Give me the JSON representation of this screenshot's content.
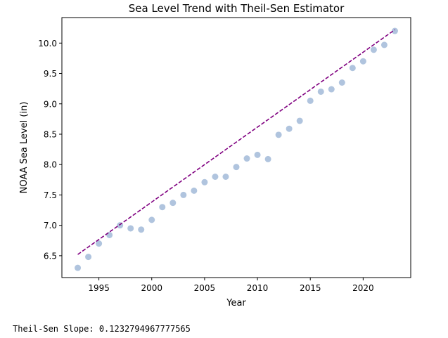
{
  "chart_data": {
    "type": "scatter",
    "title": "Sea Level Trend with Theil-Sen Estimator",
    "xlabel": "Year",
    "ylabel": "NOAA Sea Level (in)",
    "xlim": [
      1991.5,
      2024.5
    ],
    "ylim": [
      6.14,
      10.42
    ],
    "xticks": [
      1995,
      2000,
      2005,
      2010,
      2015,
      2020
    ],
    "yticks": [
      6.5,
      7.0,
      7.5,
      8.0,
      8.5,
      9.0,
      9.5,
      10.0
    ],
    "ytick_labels": [
      "6.5",
      "7.0",
      "7.5",
      "8.0",
      "8.5",
      "9.0",
      "9.5",
      "10.0"
    ],
    "grid": false,
    "point_color": "#b0c4de",
    "line_color": "#800080",
    "points": [
      {
        "x": 1993,
        "y": 6.3
      },
      {
        "x": 1994,
        "y": 6.48
      },
      {
        "x": 1995,
        "y": 6.7
      },
      {
        "x": 1996,
        "y": 6.84
      },
      {
        "x": 1997,
        "y": 7.0
      },
      {
        "x": 1998,
        "y": 6.95
      },
      {
        "x": 1999,
        "y": 6.93
      },
      {
        "x": 2000,
        "y": 7.09
      },
      {
        "x": 2001,
        "y": 7.3
      },
      {
        "x": 2002,
        "y": 7.37
      },
      {
        "x": 2003,
        "y": 7.5
      },
      {
        "x": 2004,
        "y": 7.57
      },
      {
        "x": 2005,
        "y": 7.71
      },
      {
        "x": 2006,
        "y": 7.8
      },
      {
        "x": 2007,
        "y": 7.8
      },
      {
        "x": 2008,
        "y": 7.96
      },
      {
        "x": 2009,
        "y": 8.1
      },
      {
        "x": 2010,
        "y": 8.16
      },
      {
        "x": 2011,
        "y": 8.09
      },
      {
        "x": 2012,
        "y": 8.49
      },
      {
        "x": 2013,
        "y": 8.59
      },
      {
        "x": 2014,
        "y": 8.72
      },
      {
        "x": 2015,
        "y": 9.05
      },
      {
        "x": 2016,
        "y": 9.2
      },
      {
        "x": 2017,
        "y": 9.24
      },
      {
        "x": 2018,
        "y": 9.35
      },
      {
        "x": 2019,
        "y": 9.59
      },
      {
        "x": 2020,
        "y": 9.7
      },
      {
        "x": 2021,
        "y": 9.89
      },
      {
        "x": 2022,
        "y": 9.97
      },
      {
        "x": 2023,
        "y": 10.2
      }
    ],
    "trend_line": {
      "x": [
        1993,
        2023
      ],
      "y": [
        6.52,
        10.22
      ],
      "style": "dashed"
    }
  },
  "footer": {
    "slope_text": "Theil-Sen Slope: 0.1232794967777565"
  }
}
